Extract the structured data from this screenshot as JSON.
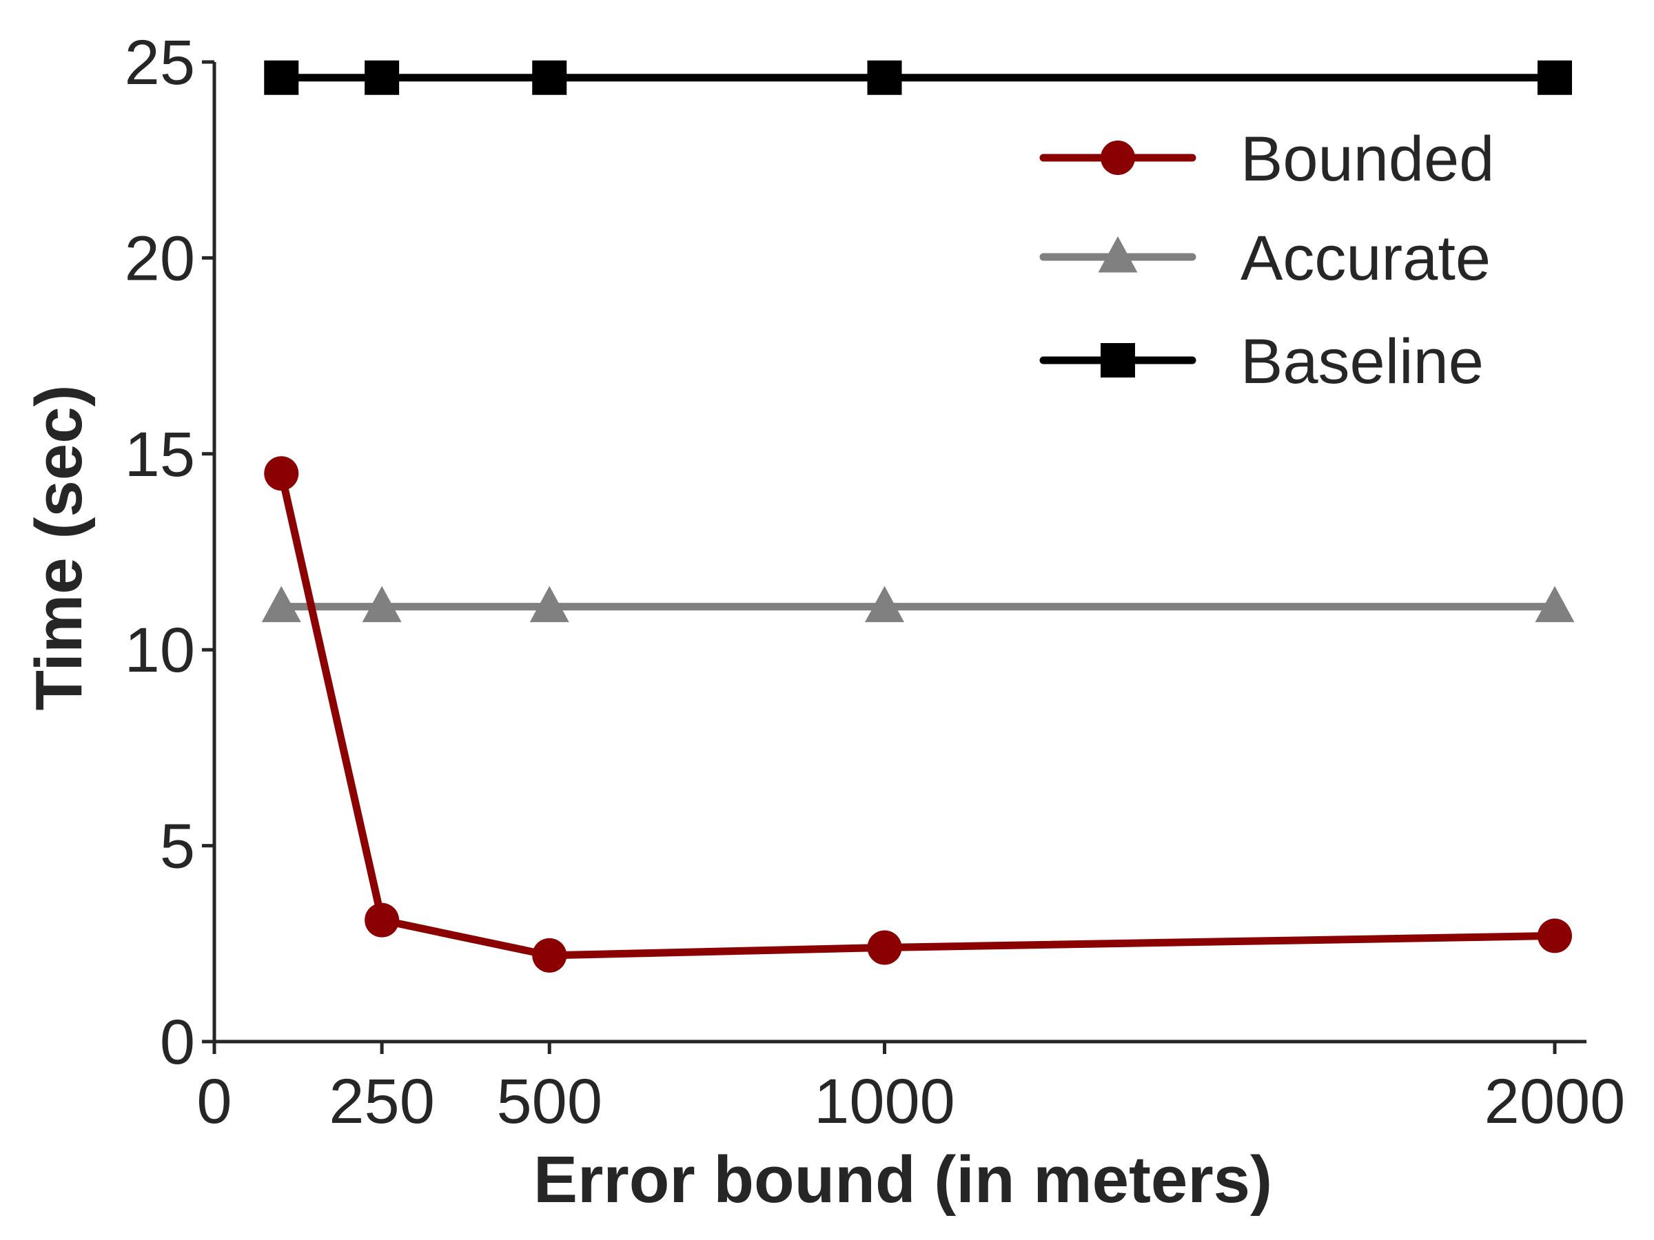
{
  "chart_data": {
    "type": "line",
    "title": "",
    "xlabel": "Error bound (in meters)",
    "ylabel": "Time (sec)",
    "xlim": [
      0,
      2100
    ],
    "ylim": [
      0,
      25
    ],
    "xticks": [
      0,
      250,
      500,
      1000,
      2000
    ],
    "yticks": [
      0,
      5,
      10,
      15,
      20,
      25
    ],
    "grid": false,
    "legend_position": "top-right",
    "series": [
      {
        "name": "Bounded",
        "color": "#8b0000",
        "marker": "circle",
        "x": [
          100,
          250,
          500,
          1000,
          2000
        ],
        "y": [
          14.5,
          3.1,
          2.2,
          2.4,
          2.7
        ]
      },
      {
        "name": "Accurate",
        "color": "#808080",
        "marker": "triangle",
        "x": [
          100,
          250,
          500,
          1000,
          2000
        ],
        "y": [
          11.1,
          11.1,
          11.1,
          11.1,
          11.1
        ]
      },
      {
        "name": "Baseline",
        "color": "#000000",
        "marker": "square",
        "x": [
          100,
          250,
          500,
          1000,
          2000
        ],
        "y": [
          24.6,
          24.6,
          24.6,
          24.6,
          24.6
        ]
      }
    ]
  }
}
